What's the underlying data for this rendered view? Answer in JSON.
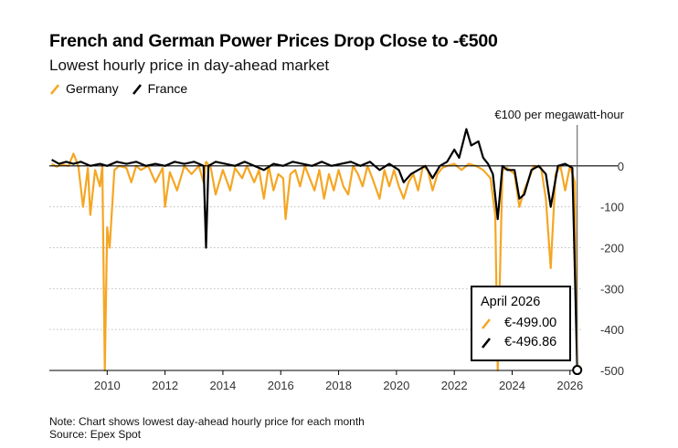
{
  "header": {
    "title": "French and German Power Prices Drop Close to -€500",
    "subtitle": "Lowest hourly price in day-ahead market"
  },
  "legend": [
    {
      "label": "Germany",
      "color": "#F5A623",
      "icon": "line-slash-icon"
    },
    {
      "label": "France",
      "color": "#000000",
      "icon": "line-slash-icon"
    }
  ],
  "tooltip": {
    "title": "April 2026",
    "rows": [
      {
        "series": "Germany",
        "value": "€-499.00",
        "color": "#F5A623"
      },
      {
        "series": "France",
        "value": "€-496.86",
        "color": "#000000"
      }
    ]
  },
  "footer": {
    "note": "Note: Chart shows lowest day-ahead hourly price for each month",
    "source": "Source: Epex Spot"
  },
  "chart_data": {
    "type": "line",
    "unit_label": "€100 per megawatt-hour",
    "y_axis_side": "right",
    "ylim": [
      -500,
      100
    ],
    "yticks": [
      0,
      -100,
      -200,
      -300,
      -400,
      -500
    ],
    "ytick_labels": [
      "0",
      "-100",
      "-200",
      "-300",
      "-400",
      "-500"
    ],
    "xlim": [
      "2008-01",
      "2026-06"
    ],
    "xticks": [
      "2010",
      "2012",
      "2014",
      "2016",
      "2018",
      "2020",
      "2022",
      "2024",
      "2026"
    ],
    "grid": "horizontal dotted",
    "legend_position": "top-left",
    "series": [
      {
        "name": "Germany",
        "color": "#F5A623",
        "points": [
          [
            "2008-02",
            5
          ],
          [
            "2008-04",
            -2
          ],
          [
            "2008-06",
            3
          ],
          [
            "2008-09",
            0
          ],
          [
            "2008-11",
            30
          ],
          [
            "2009-01",
            0
          ],
          [
            "2009-03",
            -100
          ],
          [
            "2009-05",
            -5
          ],
          [
            "2009-06",
            -120
          ],
          [
            "2009-08",
            -10
          ],
          [
            "2009-10",
            -50
          ],
          [
            "2009-11",
            0
          ],
          [
            "2009-12",
            -500
          ],
          [
            "2010-01",
            -150
          ],
          [
            "2010-02",
            -200
          ],
          [
            "2010-04",
            -10
          ],
          [
            "2010-06",
            0
          ],
          [
            "2010-09",
            -5
          ],
          [
            "2010-11",
            -40
          ],
          [
            "2011-01",
            0
          ],
          [
            "2011-03",
            -10
          ],
          [
            "2011-06",
            0
          ],
          [
            "2011-09",
            -40
          ],
          [
            "2011-12",
            -5
          ],
          [
            "2012-01",
            -100
          ],
          [
            "2012-03",
            -15
          ],
          [
            "2012-06",
            -60
          ],
          [
            "2012-09",
            0
          ],
          [
            "2012-12",
            -20
          ],
          [
            "2013-03",
            0
          ],
          [
            "2013-05",
            -40
          ],
          [
            "2013-06",
            10
          ],
          [
            "2013-08",
            -5
          ],
          [
            "2013-10",
            -70
          ],
          [
            "2014-01",
            -10
          ],
          [
            "2014-04",
            -60
          ],
          [
            "2014-06",
            -5
          ],
          [
            "2014-09",
            -30
          ],
          [
            "2014-11",
            0
          ],
          [
            "2015-02",
            -40
          ],
          [
            "2015-04",
            -10
          ],
          [
            "2015-06",
            -80
          ],
          [
            "2015-08",
            0
          ],
          [
            "2015-10",
            -60
          ],
          [
            "2015-12",
            -20
          ],
          [
            "2016-02",
            -30
          ],
          [
            "2016-03",
            -130
          ],
          [
            "2016-05",
            -20
          ],
          [
            "2016-07",
            -10
          ],
          [
            "2016-09",
            -50
          ],
          [
            "2016-11",
            0
          ],
          [
            "2017-01",
            -30
          ],
          [
            "2017-03",
            -60
          ],
          [
            "2017-05",
            -10
          ],
          [
            "2017-07",
            -80
          ],
          [
            "2017-09",
            -20
          ],
          [
            "2017-11",
            -60
          ],
          [
            "2018-01",
            -10
          ],
          [
            "2018-03",
            -50
          ],
          [
            "2018-05",
            -70
          ],
          [
            "2018-07",
            0
          ],
          [
            "2018-09",
            -20
          ],
          [
            "2018-11",
            -50
          ],
          [
            "2019-01",
            0
          ],
          [
            "2019-03",
            -30
          ],
          [
            "2019-06",
            -80
          ],
          [
            "2019-08",
            -10
          ],
          [
            "2019-10",
            -50
          ],
          [
            "2019-12",
            -10
          ],
          [
            "2020-02",
            -50
          ],
          [
            "2020-04",
            -80
          ],
          [
            "2020-06",
            -40
          ],
          [
            "2020-08",
            -20
          ],
          [
            "2020-10",
            -60
          ],
          [
            "2020-12",
            0
          ],
          [
            "2021-02",
            -10
          ],
          [
            "2021-04",
            -60
          ],
          [
            "2021-06",
            -20
          ],
          [
            "2021-08",
            -5
          ],
          [
            "2021-10",
            0
          ],
          [
            "2022-01",
            5
          ],
          [
            "2022-04",
            -10
          ],
          [
            "2022-07",
            5
          ],
          [
            "2022-10",
            0
          ],
          [
            "2023-01",
            -10
          ],
          [
            "2023-04",
            -30
          ],
          [
            "2023-06",
            -120
          ],
          [
            "2023-07",
            -500
          ],
          [
            "2023-09",
            -10
          ],
          [
            "2023-11",
            -5
          ],
          [
            "2024-02",
            -20
          ],
          [
            "2024-04",
            -100
          ],
          [
            "2024-06",
            -60
          ],
          [
            "2024-08",
            -30
          ],
          [
            "2024-10",
            0
          ],
          [
            "2025-01",
            -5
          ],
          [
            "2025-03",
            -80
          ],
          [
            "2025-05",
            -250
          ],
          [
            "2025-07",
            -20
          ],
          [
            "2025-09",
            0
          ],
          [
            "2025-11",
            -60
          ],
          [
            "2026-01",
            0
          ],
          [
            "2026-03",
            -40
          ],
          [
            "2026-04",
            -499
          ]
        ]
      },
      {
        "name": "France",
        "color": "#000000",
        "points": [
          [
            "2008-02",
            15
          ],
          [
            "2008-05",
            5
          ],
          [
            "2008-08",
            10
          ],
          [
            "2008-11",
            5
          ],
          [
            "2009-02",
            10
          ],
          [
            "2009-06",
            0
          ],
          [
            "2009-10",
            5
          ],
          [
            "2010-01",
            0
          ],
          [
            "2010-05",
            10
          ],
          [
            "2010-09",
            5
          ],
          [
            "2011-01",
            10
          ],
          [
            "2011-05",
            0
          ],
          [
            "2011-09",
            5
          ],
          [
            "2012-01",
            0
          ],
          [
            "2012-05",
            10
          ],
          [
            "2012-09",
            5
          ],
          [
            "2013-01",
            10
          ],
          [
            "2013-05",
            0
          ],
          [
            "2013-06",
            -200
          ],
          [
            "2013-07",
            0
          ],
          [
            "2013-10",
            10
          ],
          [
            "2014-02",
            5
          ],
          [
            "2014-06",
            0
          ],
          [
            "2014-10",
            10
          ],
          [
            "2015-02",
            0
          ],
          [
            "2015-06",
            -10
          ],
          [
            "2015-10",
            5
          ],
          [
            "2016-02",
            0
          ],
          [
            "2016-06",
            10
          ],
          [
            "2016-10",
            5
          ],
          [
            "2017-02",
            0
          ],
          [
            "2017-06",
            10
          ],
          [
            "2017-10",
            0
          ],
          [
            "2018-02",
            5
          ],
          [
            "2018-06",
            10
          ],
          [
            "2018-10",
            0
          ],
          [
            "2019-02",
            10
          ],
          [
            "2019-06",
            -10
          ],
          [
            "2019-10",
            5
          ],
          [
            "2020-02",
            -10
          ],
          [
            "2020-04",
            -40
          ],
          [
            "2020-07",
            -20
          ],
          [
            "2020-10",
            -10
          ],
          [
            "2021-01",
            0
          ],
          [
            "2021-04",
            -30
          ],
          [
            "2021-07",
            0
          ],
          [
            "2021-10",
            10
          ],
          [
            "2022-01",
            40
          ],
          [
            "2022-03",
            20
          ],
          [
            "2022-06",
            90
          ],
          [
            "2022-08",
            50
          ],
          [
            "2022-11",
            60
          ],
          [
            "2023-01",
            20
          ],
          [
            "2023-03",
            5
          ],
          [
            "2023-05",
            -20
          ],
          [
            "2023-07",
            -130
          ],
          [
            "2023-09",
            0
          ],
          [
            "2023-11",
            -10
          ],
          [
            "2024-02",
            -10
          ],
          [
            "2024-04",
            -80
          ],
          [
            "2024-06",
            -70
          ],
          [
            "2024-09",
            -10
          ],
          [
            "2024-12",
            0
          ],
          [
            "2025-03",
            -20
          ],
          [
            "2025-05",
            -100
          ],
          [
            "2025-08",
            0
          ],
          [
            "2025-11",
            5
          ],
          [
            "2026-02",
            -5
          ],
          [
            "2026-04",
            -496.86
          ]
        ]
      }
    ]
  }
}
